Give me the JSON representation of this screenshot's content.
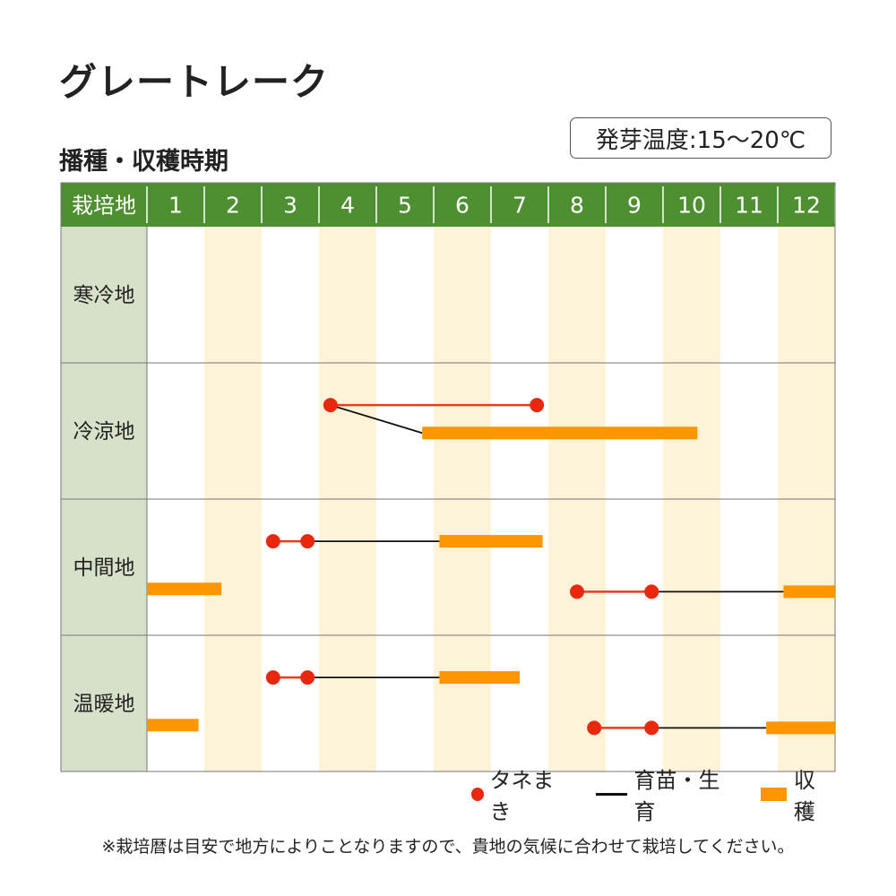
{
  "title": "グレートレーク",
  "subtitle": "播種・収穫時期",
  "temp_label": "発芽温度:15～20℃",
  "note": "※栽培暦は目安で地方によりことなりますので、貴地の気候に合わせて栽培してください。",
  "colors": {
    "header_bg": "#4e8f32",
    "label_bg": "#d7e0c8",
    "stripe": "#fdf3d8",
    "sow": "#e8290f",
    "sow_line": "#e83c1e",
    "grow": "#111111",
    "harvest": "#ff9600",
    "border": "#777777"
  },
  "legend": {
    "sow_label": "タネまき",
    "grow_label": "育苗・生育",
    "harvest_label": "収穫"
  },
  "chart_data": {
    "type": "gantt",
    "header_label": "栽培地",
    "months": [
      "1",
      "2",
      "3",
      "4",
      "5",
      "6",
      "7",
      "8",
      "9",
      "10",
      "11",
      "12"
    ],
    "x_range": [
      1,
      13
    ],
    "regions": [
      {
        "name": "寒冷地",
        "tracks": []
      },
      {
        "name": "冷涼地",
        "tracks": [
          {
            "sow": [
              4.2,
              7.8
            ],
            "grow": [
              4.2,
              5.8
            ],
            "harvest": [
              5.8,
              10.6
            ]
          }
        ]
      },
      {
        "name": "中間地",
        "tracks": [
          {
            "sow": [
              3.2,
              3.8
            ],
            "grow": [
              3.8,
              6.1
            ],
            "harvest": [
              6.1,
              7.9
            ]
          },
          {
            "sow": [
              8.5,
              9.8
            ],
            "grow": [
              9.8,
              12.1
            ],
            "harvest": [
              12.1,
              13.0
            ],
            "harvest_prev": [
              1.0,
              2.3
            ]
          }
        ]
      },
      {
        "name": "温暖地",
        "tracks": [
          {
            "sow": [
              3.2,
              3.8
            ],
            "grow": [
              3.8,
              6.1
            ],
            "harvest": [
              6.1,
              7.5
            ]
          },
          {
            "sow": [
              8.8,
              9.8
            ],
            "grow": [
              9.8,
              11.8
            ],
            "harvest": [
              11.8,
              13.0
            ],
            "harvest_prev": [
              1.0,
              1.9
            ]
          }
        ]
      }
    ]
  }
}
